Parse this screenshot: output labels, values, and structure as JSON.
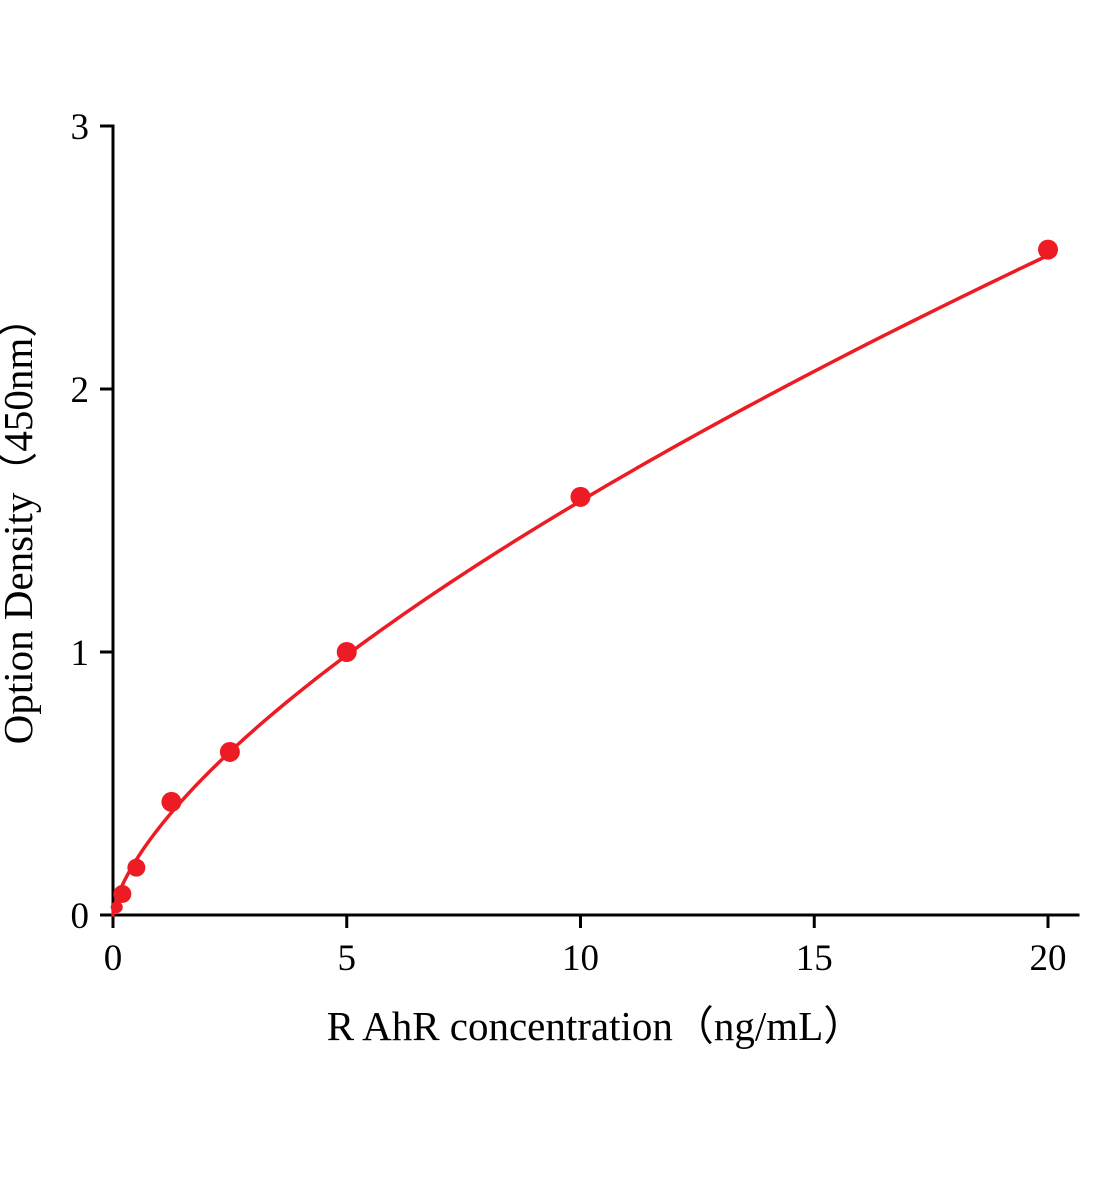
{
  "figure": {
    "background": "#ffffff"
  },
  "chart_data": {
    "type": "scatter",
    "title": "",
    "xlabel": "R AhR  concentration（ng/mL）",
    "ylabel": "Option Density（450nm）",
    "x_ticks": [
      0,
      5,
      10,
      15,
      20
    ],
    "y_ticks": [
      0,
      1,
      2,
      3
    ],
    "xlim": [
      0,
      20.6
    ],
    "ylim": [
      0,
      3
    ],
    "grid": false,
    "legend": "none",
    "line_color": "#ed1c24",
    "marker_color": "#ed1c24",
    "axis_color": "#000000",
    "points": [
      {
        "x": 0.08,
        "y": 0.03,
        "r": 6
      },
      {
        "x": 0.2,
        "y": 0.08,
        "r": 9
      },
      {
        "x": 0.5,
        "y": 0.18,
        "r": 9
      },
      {
        "x": 1.25,
        "y": 0.43,
        "r": 10
      },
      {
        "x": 2.5,
        "y": 0.62,
        "r": 10
      },
      {
        "x": 5,
        "y": 1.0,
        "r": 10
      },
      {
        "x": 10,
        "y": 1.59,
        "r": 10
      },
      {
        "x": 20,
        "y": 2.53,
        "r": 10
      }
    ],
    "fit_curve": {
      "type": "power",
      "a": 0.335,
      "b": 0.672,
      "x_start": 0,
      "x_end": 20
    }
  }
}
